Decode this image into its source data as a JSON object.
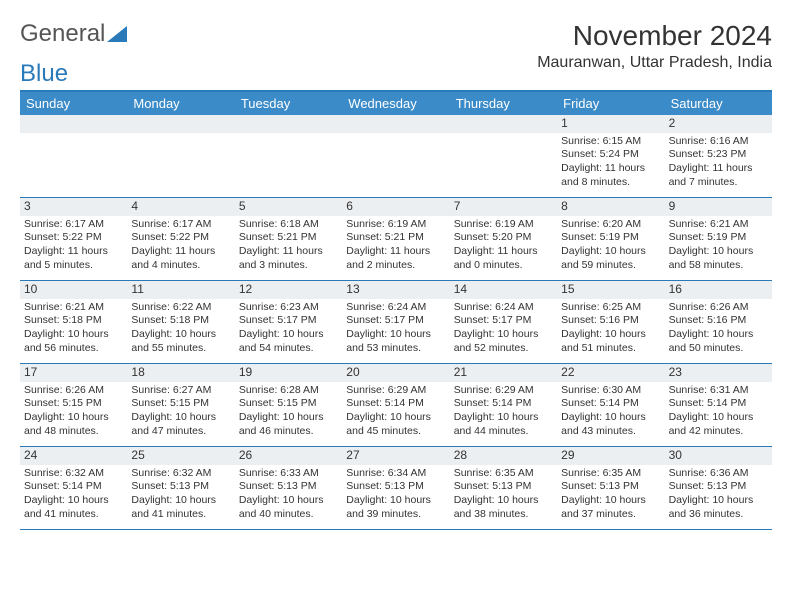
{
  "logo": {
    "text1": "General",
    "text2": "Blue"
  },
  "title": "November 2024",
  "location": "Mauranwan, Uttar Pradesh, India",
  "colors": {
    "header_bg": "#3b8bc9",
    "border": "#2a7ab9",
    "daynum_bg": "#eceff1",
    "text": "#333333",
    "logo_gray": "#555555"
  },
  "day_names": [
    "Sunday",
    "Monday",
    "Tuesday",
    "Wednesday",
    "Thursday",
    "Friday",
    "Saturday"
  ],
  "weeks": [
    [
      null,
      null,
      null,
      null,
      null,
      {
        "n": "1",
        "sr": "Sunrise: 6:15 AM",
        "ss": "Sunset: 5:24 PM",
        "d1": "Daylight: 11 hours",
        "d2": "and 8 minutes."
      },
      {
        "n": "2",
        "sr": "Sunrise: 6:16 AM",
        "ss": "Sunset: 5:23 PM",
        "d1": "Daylight: 11 hours",
        "d2": "and 7 minutes."
      }
    ],
    [
      {
        "n": "3",
        "sr": "Sunrise: 6:17 AM",
        "ss": "Sunset: 5:22 PM",
        "d1": "Daylight: 11 hours",
        "d2": "and 5 minutes."
      },
      {
        "n": "4",
        "sr": "Sunrise: 6:17 AM",
        "ss": "Sunset: 5:22 PM",
        "d1": "Daylight: 11 hours",
        "d2": "and 4 minutes."
      },
      {
        "n": "5",
        "sr": "Sunrise: 6:18 AM",
        "ss": "Sunset: 5:21 PM",
        "d1": "Daylight: 11 hours",
        "d2": "and 3 minutes."
      },
      {
        "n": "6",
        "sr": "Sunrise: 6:19 AM",
        "ss": "Sunset: 5:21 PM",
        "d1": "Daylight: 11 hours",
        "d2": "and 2 minutes."
      },
      {
        "n": "7",
        "sr": "Sunrise: 6:19 AM",
        "ss": "Sunset: 5:20 PM",
        "d1": "Daylight: 11 hours",
        "d2": "and 0 minutes."
      },
      {
        "n": "8",
        "sr": "Sunrise: 6:20 AM",
        "ss": "Sunset: 5:19 PM",
        "d1": "Daylight: 10 hours",
        "d2": "and 59 minutes."
      },
      {
        "n": "9",
        "sr": "Sunrise: 6:21 AM",
        "ss": "Sunset: 5:19 PM",
        "d1": "Daylight: 10 hours",
        "d2": "and 58 minutes."
      }
    ],
    [
      {
        "n": "10",
        "sr": "Sunrise: 6:21 AM",
        "ss": "Sunset: 5:18 PM",
        "d1": "Daylight: 10 hours",
        "d2": "and 56 minutes."
      },
      {
        "n": "11",
        "sr": "Sunrise: 6:22 AM",
        "ss": "Sunset: 5:18 PM",
        "d1": "Daylight: 10 hours",
        "d2": "and 55 minutes."
      },
      {
        "n": "12",
        "sr": "Sunrise: 6:23 AM",
        "ss": "Sunset: 5:17 PM",
        "d1": "Daylight: 10 hours",
        "d2": "and 54 minutes."
      },
      {
        "n": "13",
        "sr": "Sunrise: 6:24 AM",
        "ss": "Sunset: 5:17 PM",
        "d1": "Daylight: 10 hours",
        "d2": "and 53 minutes."
      },
      {
        "n": "14",
        "sr": "Sunrise: 6:24 AM",
        "ss": "Sunset: 5:17 PM",
        "d1": "Daylight: 10 hours",
        "d2": "and 52 minutes."
      },
      {
        "n": "15",
        "sr": "Sunrise: 6:25 AM",
        "ss": "Sunset: 5:16 PM",
        "d1": "Daylight: 10 hours",
        "d2": "and 51 minutes."
      },
      {
        "n": "16",
        "sr": "Sunrise: 6:26 AM",
        "ss": "Sunset: 5:16 PM",
        "d1": "Daylight: 10 hours",
        "d2": "and 50 minutes."
      }
    ],
    [
      {
        "n": "17",
        "sr": "Sunrise: 6:26 AM",
        "ss": "Sunset: 5:15 PM",
        "d1": "Daylight: 10 hours",
        "d2": "and 48 minutes."
      },
      {
        "n": "18",
        "sr": "Sunrise: 6:27 AM",
        "ss": "Sunset: 5:15 PM",
        "d1": "Daylight: 10 hours",
        "d2": "and 47 minutes."
      },
      {
        "n": "19",
        "sr": "Sunrise: 6:28 AM",
        "ss": "Sunset: 5:15 PM",
        "d1": "Daylight: 10 hours",
        "d2": "and 46 minutes."
      },
      {
        "n": "20",
        "sr": "Sunrise: 6:29 AM",
        "ss": "Sunset: 5:14 PM",
        "d1": "Daylight: 10 hours",
        "d2": "and 45 minutes."
      },
      {
        "n": "21",
        "sr": "Sunrise: 6:29 AM",
        "ss": "Sunset: 5:14 PM",
        "d1": "Daylight: 10 hours",
        "d2": "and 44 minutes."
      },
      {
        "n": "22",
        "sr": "Sunrise: 6:30 AM",
        "ss": "Sunset: 5:14 PM",
        "d1": "Daylight: 10 hours",
        "d2": "and 43 minutes."
      },
      {
        "n": "23",
        "sr": "Sunrise: 6:31 AM",
        "ss": "Sunset: 5:14 PM",
        "d1": "Daylight: 10 hours",
        "d2": "and 42 minutes."
      }
    ],
    [
      {
        "n": "24",
        "sr": "Sunrise: 6:32 AM",
        "ss": "Sunset: 5:14 PM",
        "d1": "Daylight: 10 hours",
        "d2": "and 41 minutes."
      },
      {
        "n": "25",
        "sr": "Sunrise: 6:32 AM",
        "ss": "Sunset: 5:13 PM",
        "d1": "Daylight: 10 hours",
        "d2": "and 41 minutes."
      },
      {
        "n": "26",
        "sr": "Sunrise: 6:33 AM",
        "ss": "Sunset: 5:13 PM",
        "d1": "Daylight: 10 hours",
        "d2": "and 40 minutes."
      },
      {
        "n": "27",
        "sr": "Sunrise: 6:34 AM",
        "ss": "Sunset: 5:13 PM",
        "d1": "Daylight: 10 hours",
        "d2": "and 39 minutes."
      },
      {
        "n": "28",
        "sr": "Sunrise: 6:35 AM",
        "ss": "Sunset: 5:13 PM",
        "d1": "Daylight: 10 hours",
        "d2": "and 38 minutes."
      },
      {
        "n": "29",
        "sr": "Sunrise: 6:35 AM",
        "ss": "Sunset: 5:13 PM",
        "d1": "Daylight: 10 hours",
        "d2": "and 37 minutes."
      },
      {
        "n": "30",
        "sr": "Sunrise: 6:36 AM",
        "ss": "Sunset: 5:13 PM",
        "d1": "Daylight: 10 hours",
        "d2": "and 36 minutes."
      }
    ]
  ]
}
